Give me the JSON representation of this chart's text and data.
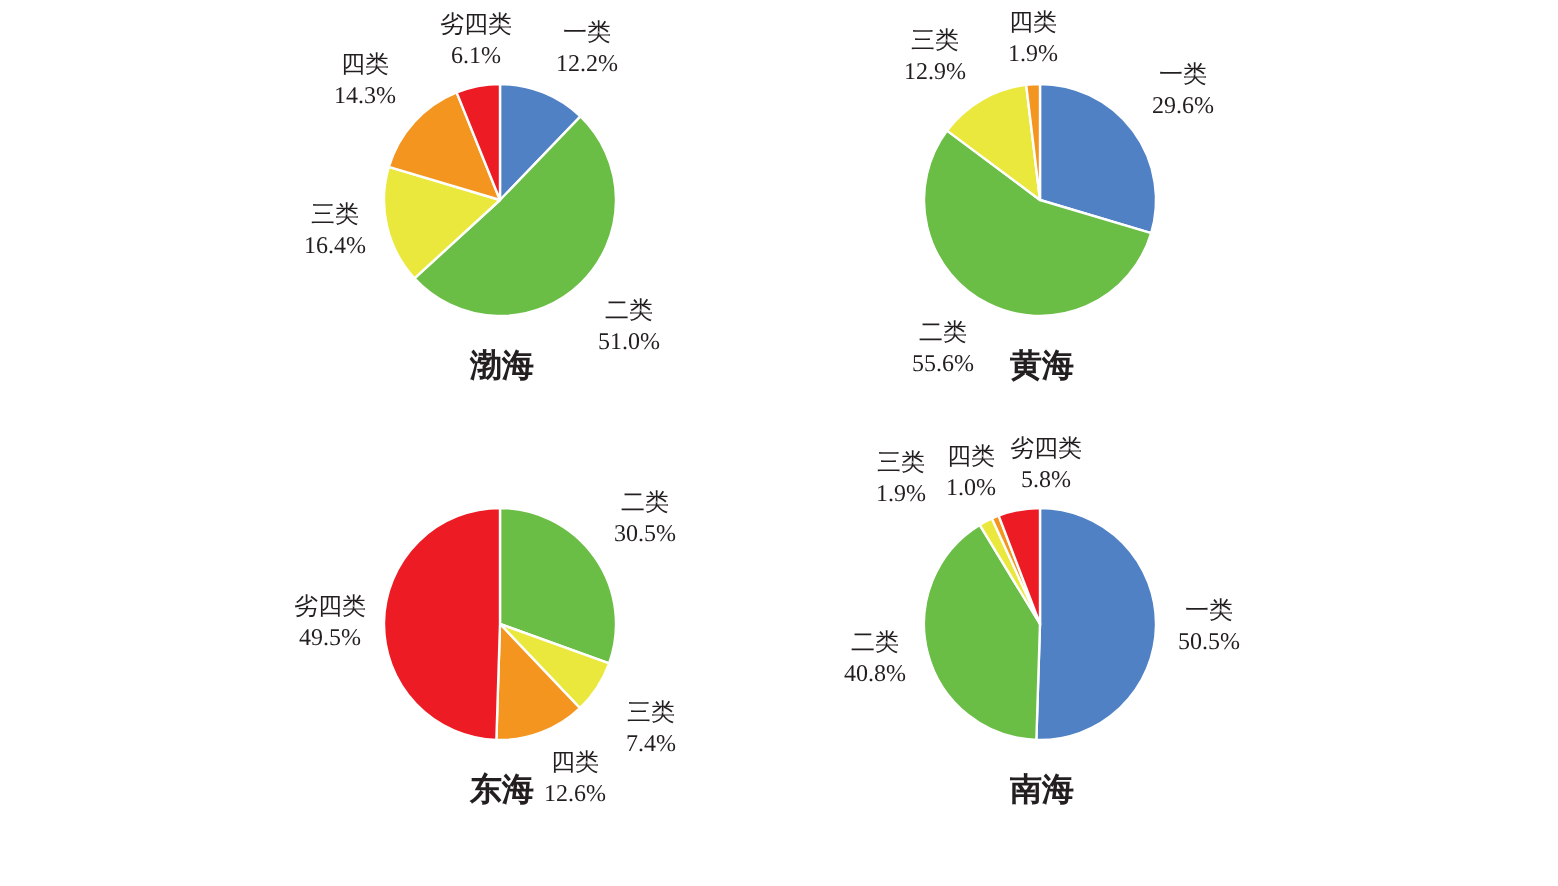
{
  "chart_data": [
    {
      "type": "pie",
      "title": "渤海",
      "categories": [
        "一类",
        "二类",
        "三类",
        "四类",
        "劣四类"
      ],
      "values": [
        12.2,
        51.0,
        16.4,
        14.3,
        6.1
      ],
      "value_labels": [
        "12.2%",
        "51.0%",
        "16.4%",
        "14.3%",
        "6.1%"
      ],
      "colors": [
        "#4f81c4",
        "#6abd45",
        "#ebe83d",
        "#f3951f",
        "#ed1c24"
      ]
    },
    {
      "type": "pie",
      "title": "黄海",
      "categories": [
        "一类",
        "二类",
        "三类",
        "四类"
      ],
      "values": [
        29.6,
        55.6,
        12.9,
        1.9
      ],
      "value_labels": [
        "29.6%",
        "55.6%",
        "12.9%",
        "1.9%"
      ],
      "colors": [
        "#4f81c4",
        "#6abd45",
        "#ebe83d",
        "#f3951f"
      ]
    },
    {
      "type": "pie",
      "title": "东海",
      "categories": [
        "二类",
        "三类",
        "四类",
        "劣四类"
      ],
      "values": [
        30.5,
        7.4,
        12.6,
        49.5
      ],
      "value_labels": [
        "30.5%",
        "7.4%",
        "12.6%",
        "49.5%"
      ],
      "colors": [
        "#6abd45",
        "#ebe83d",
        "#f3951f",
        "#ed1c24"
      ]
    },
    {
      "type": "pie",
      "title": "南海",
      "categories": [
        "一类",
        "二类",
        "三类",
        "四类",
        "劣四类"
      ],
      "values": [
        50.5,
        40.8,
        1.9,
        1.0,
        5.8
      ],
      "value_labels": [
        "50.5%",
        "40.8%",
        "1.9%",
        "1.0%",
        "5.8%"
      ],
      "colors": [
        "#4f81c4",
        "#6abd45",
        "#ebe83d",
        "#f3951f",
        "#ed1c24"
      ]
    }
  ]
}
